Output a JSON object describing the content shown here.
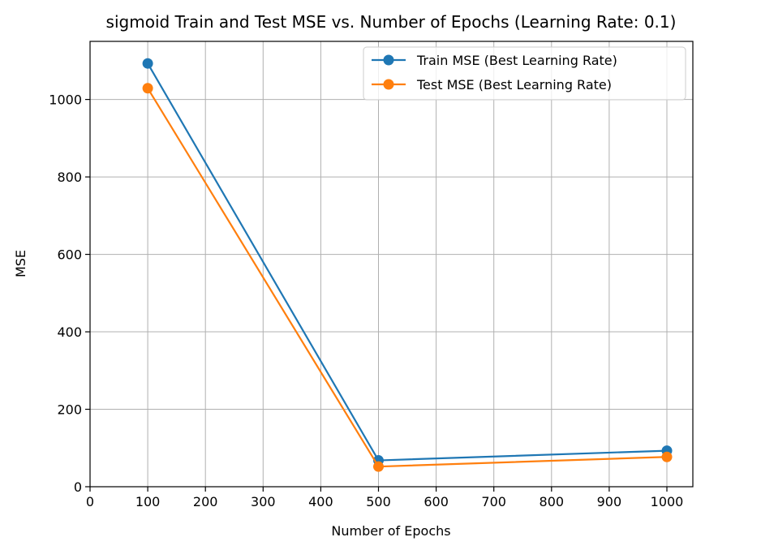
{
  "chart_data": {
    "type": "line",
    "title": "sigmoid Train and Test MSE vs. Number of Epochs (Learning Rate: 0.1)",
    "xlabel": "Number of Epochs",
    "ylabel": "MSE",
    "x": [
      100,
      500,
      1000
    ],
    "series": [
      {
        "name": "Train MSE (Best Learning Rate)",
        "color": "#1f77b4",
        "values": [
          1093,
          68,
          93
        ]
      },
      {
        "name": "Test MSE (Best Learning Rate)",
        "color": "#ff7f0e",
        "values": [
          1029,
          52,
          77
        ]
      }
    ],
    "xlim": [
      0,
      1045
    ],
    "ylim": [
      0,
      1150
    ],
    "xticks": [
      0,
      100,
      200,
      300,
      400,
      500,
      600,
      700,
      800,
      900,
      1000
    ],
    "yticks": [
      0,
      200,
      400,
      600,
      800,
      1000
    ],
    "grid": true,
    "legend_position": "top-right"
  }
}
